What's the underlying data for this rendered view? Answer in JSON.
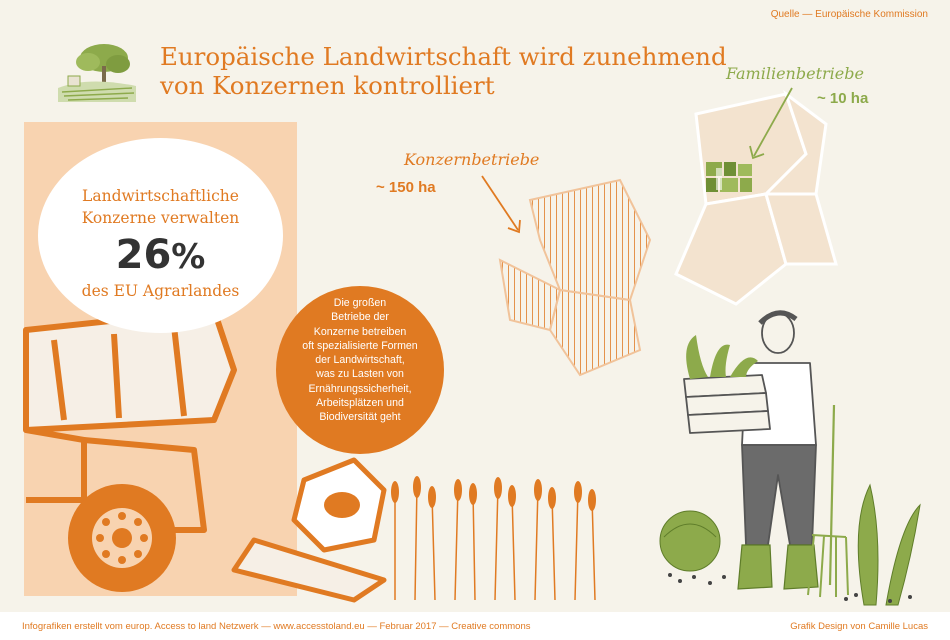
{
  "header": {
    "source": "Quelle  — Europäische Kommission",
    "title_line1": "Europäische Landwirtschaft wird zunehmend",
    "title_line2": "von Konzernen kontrolliert"
  },
  "stat": {
    "line1": "Landwirtschaftliche",
    "line2": "Konzerne verwalten",
    "number": "26",
    "unit": "%",
    "line3": "des EU Agrarlandes"
  },
  "info": {
    "lines": [
      "Die großen",
      "Betriebe der",
      "Konzerne betreiben",
      "oft spezialisierte Formen",
      "der Landwirtschaft,",
      "was zu Lasten von",
      "Ernährungssicherheit,",
      "Arbeitsplätzen und",
      "Biodiversität geht"
    ]
  },
  "map_labels": {
    "family_label": "Familienbetriebe",
    "family_size": "~ 10 ha",
    "corp_label": "Konzernbetriebe",
    "corp_size": "~ 150 ha"
  },
  "footer": {
    "left": "Infografiken erstellt vom europ. Access to land Netzwerk  — www.accesstoland.eu — Februar 2017 — Creative commons",
    "right": "Grafik Design von Camille Lucas"
  },
  "colors": {
    "orange": "#e07a22",
    "light_orange": "#f8d3b0",
    "green": "#8daa4b",
    "beige": "#f6f3ea",
    "dark_gray": "#333333"
  }
}
